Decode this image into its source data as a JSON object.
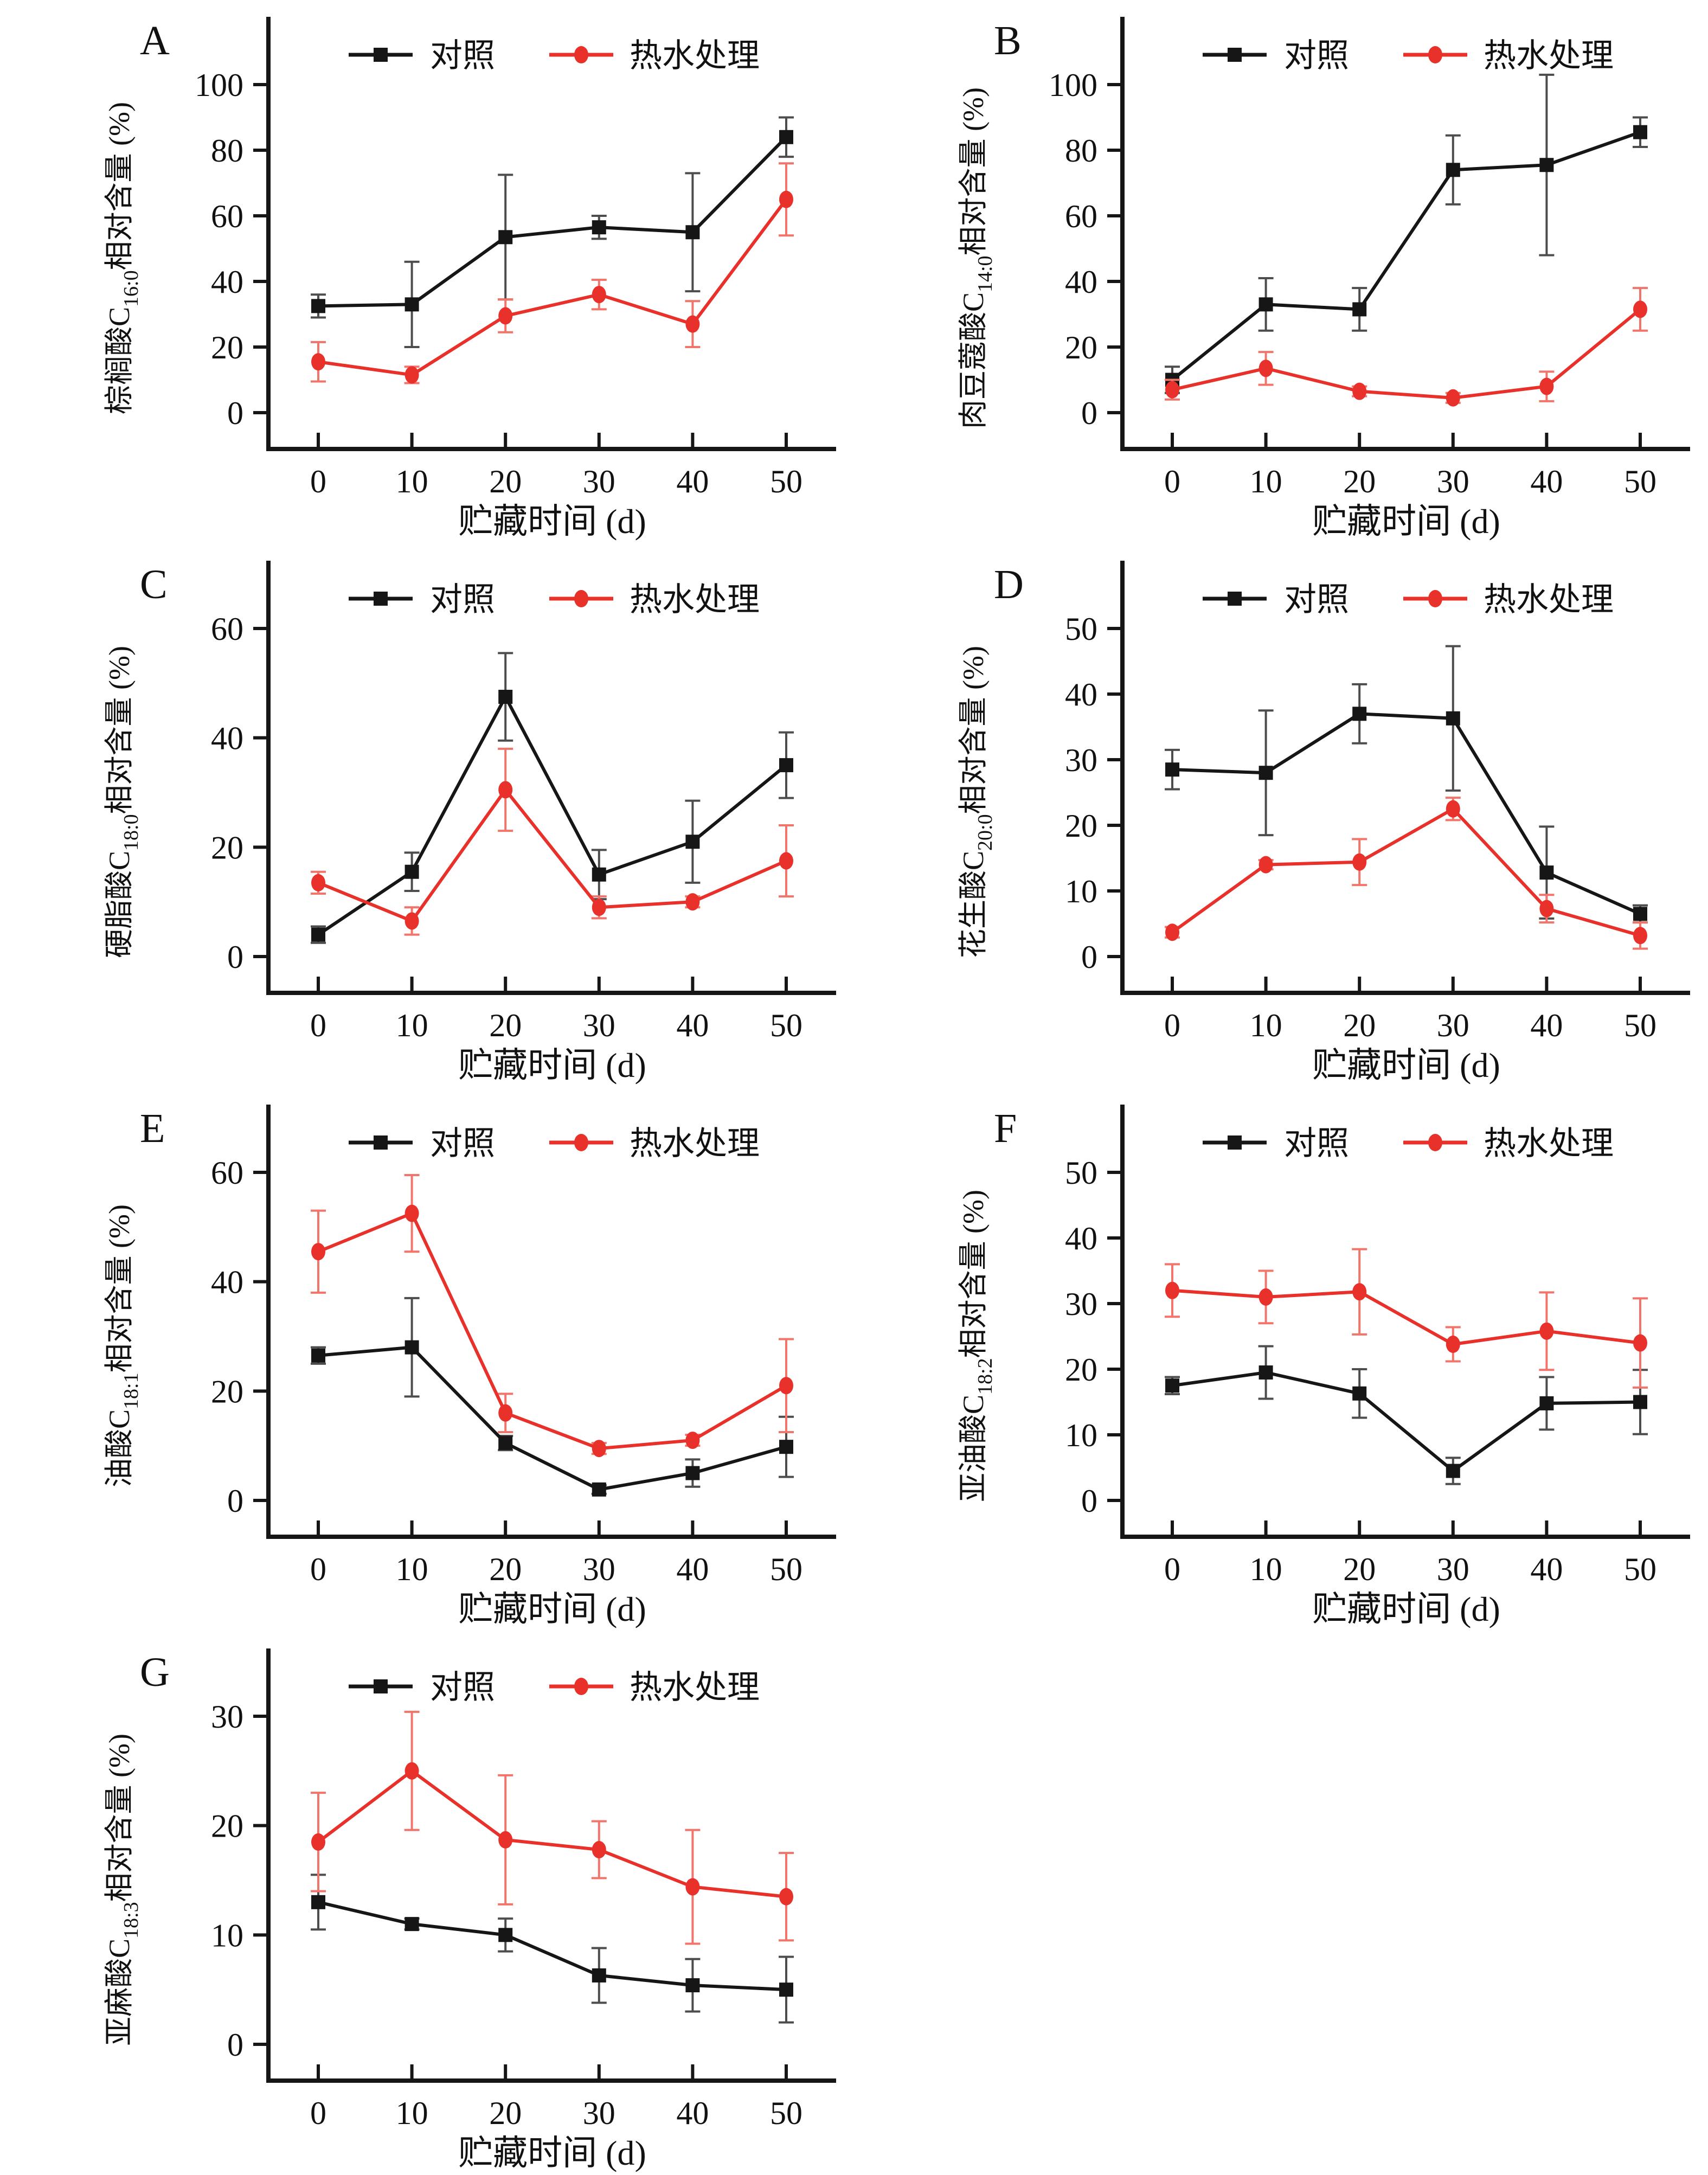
{
  "figure": {
    "background": "#ffffff",
    "axis_color": "#161616",
    "text_color": "#111111",
    "xlabel": "贮藏时间 (d)",
    "legend_position": "top-inside",
    "legend": [
      {
        "name": "control",
        "label": "对照",
        "marker": "square",
        "color": "#161616",
        "error_bar_color": "#4d4d4d"
      },
      {
        "name": "hot-water",
        "label": "热水处理",
        "marker": "circle",
        "color": "#e8312a",
        "error_bar_color": "#f2756b"
      }
    ]
  },
  "chart_data": [
    {
      "type": "line",
      "panel": "A",
      "ylabel_prefix": "棕榈酸C",
      "ylabel_sub": "16:0",
      "ylabel_suffix": "相对含量 (%)",
      "xlabel": "贮藏时间 (d)",
      "grid": false,
      "x": [
        0,
        10,
        20,
        30,
        40,
        50
      ],
      "yticks": [
        0,
        20,
        40,
        60,
        80,
        100
      ],
      "ylim": [
        0,
        100
      ],
      "series": [
        {
          "name": "对照",
          "values": [
            32.5,
            33,
            53.5,
            56.5,
            55,
            84
          ],
          "errors": [
            3.5,
            13,
            19,
            3.5,
            18,
            6
          ]
        },
        {
          "name": "热水处理",
          "values": [
            15.5,
            11.5,
            29.5,
            36,
            27,
            65
          ],
          "errors": [
            6,
            2.5,
            5,
            4.5,
            7,
            11
          ]
        }
      ]
    },
    {
      "type": "line",
      "panel": "B",
      "ylabel_prefix": "肉豆蔻酸C",
      "ylabel_sub": "14:0",
      "ylabel_suffix": "相对含量 (%)",
      "xlabel": "贮藏时间 (d)",
      "grid": false,
      "x": [
        0,
        10,
        20,
        30,
        40,
        50
      ],
      "yticks": [
        0,
        20,
        40,
        60,
        80,
        100
      ],
      "ylim": [
        0,
        100
      ],
      "series": [
        {
          "name": "对照",
          "values": [
            10,
            33,
            31.5,
            74,
            75.5,
            85.5
          ],
          "errors": [
            4,
            8,
            6.5,
            10.5,
            27.5,
            4.5
          ]
        },
        {
          "name": "热水处理",
          "values": [
            7,
            13.5,
            6.5,
            4.5,
            8,
            31.5
          ],
          "errors": [
            3,
            5,
            1.5,
            1.5,
            4.5,
            6.5
          ]
        }
      ]
    },
    {
      "type": "line",
      "panel": "C",
      "ylabel_prefix": "硬脂酸C",
      "ylabel_sub": "18:0",
      "ylabel_suffix": "相对含量 (%)",
      "xlabel": "贮藏时间 (d)",
      "grid": false,
      "x": [
        0,
        10,
        20,
        30,
        40,
        50
      ],
      "yticks": [
        0,
        20,
        40,
        60
      ],
      "ylim": [
        0,
        60
      ],
      "series": [
        {
          "name": "对照",
          "values": [
            4,
            15.5,
            47.5,
            15,
            21,
            35
          ],
          "errors": [
            1.5,
            3.5,
            8,
            4.5,
            7.5,
            6
          ]
        },
        {
          "name": "热水处理",
          "values": [
            13.5,
            6.5,
            30.5,
            9,
            10,
            17.5
          ],
          "errors": [
            2,
            2.5,
            7.5,
            2,
            1,
            6.5
          ]
        }
      ]
    },
    {
      "type": "line",
      "panel": "D",
      "ylabel_prefix": "花生酸C",
      "ylabel_sub": "20:0",
      "ylabel_suffix": "相对含量 (%)",
      "xlabel": "贮藏时间 (d)",
      "grid": false,
      "x": [
        0,
        10,
        20,
        30,
        40,
        50
      ],
      "yticks": [
        0,
        10,
        20,
        30,
        40,
        50
      ],
      "ylim": [
        0,
        50
      ],
      "series": [
        {
          "name": "对照",
          "values": [
            28.5,
            28,
            37,
            36.3,
            12.8,
            6.5
          ],
          "errors": [
            3,
            9.5,
            4.5,
            11,
            7,
            1.3
          ]
        },
        {
          "name": "热水处理",
          "values": [
            3.7,
            14,
            14.4,
            22.5,
            7.3,
            3.2
          ],
          "errors": [
            0.8,
            0.7,
            3.5,
            1.7,
            2.1,
            2
          ]
        }
      ]
    },
    {
      "type": "line",
      "panel": "E",
      "ylabel_prefix": "油酸C",
      "ylabel_sub": "18:1",
      "ylabel_suffix": "相对含量 (%)",
      "xlabel": "贮藏时间 (d)",
      "grid": false,
      "x": [
        0,
        10,
        20,
        30,
        40,
        50
      ],
      "yticks": [
        0,
        20,
        40,
        60
      ],
      "ylim": [
        0,
        60
      ],
      "series": [
        {
          "name": "对照",
          "values": [
            26.5,
            28,
            10.5,
            2,
            5,
            9.8
          ],
          "errors": [
            1.5,
            9,
            1.3,
            0.8,
            2.5,
            5.5
          ]
        },
        {
          "name": "热水处理",
          "values": [
            45.5,
            52.5,
            16,
            9.5,
            11,
            21
          ],
          "errors": [
            7.5,
            7,
            3.5,
            1,
            1,
            8.5
          ]
        }
      ]
    },
    {
      "type": "line",
      "panel": "F",
      "ylabel_prefix": "亚油酸C",
      "ylabel_sub": "18:2",
      "ylabel_suffix": "相对含量 (%)",
      "xlabel": "贮藏时间 (d)",
      "grid": false,
      "x": [
        0,
        10,
        20,
        30,
        40,
        50
      ],
      "yticks": [
        0,
        10,
        20,
        30,
        40,
        50
      ],
      "ylim": [
        0,
        50
      ],
      "series": [
        {
          "name": "对照",
          "values": [
            17.5,
            19.5,
            16.3,
            4.5,
            14.8,
            15
          ],
          "errors": [
            1.3,
            4,
            3.7,
            2,
            4,
            4.9
          ]
        },
        {
          "name": "热水处理",
          "values": [
            32,
            31,
            31.8,
            23.8,
            25.8,
            24
          ],
          "errors": [
            4,
            4,
            6.5,
            2.6,
            5.9,
            6.8
          ]
        }
      ]
    },
    {
      "type": "line",
      "panel": "G",
      "ylabel_prefix": "亚麻酸C",
      "ylabel_sub": "18:3",
      "ylabel_suffix": "相对含量 (%)",
      "xlabel": "贮藏时间 (d)",
      "grid": false,
      "x": [
        0,
        10,
        20,
        30,
        40,
        50
      ],
      "yticks": [
        0,
        10,
        20,
        30
      ],
      "ylim": [
        0,
        30
      ],
      "series": [
        {
          "name": "对照",
          "values": [
            13,
            11,
            10,
            6.3,
            5.4,
            5
          ],
          "errors": [
            2.5,
            0.5,
            1.5,
            2.5,
            2.4,
            3
          ]
        },
        {
          "name": "热水处理",
          "values": [
            18.5,
            25,
            18.7,
            17.8,
            14.4,
            13.5
          ],
          "errors": [
            4.5,
            5.4,
            5.9,
            2.6,
            5.2,
            4
          ]
        }
      ]
    }
  ]
}
